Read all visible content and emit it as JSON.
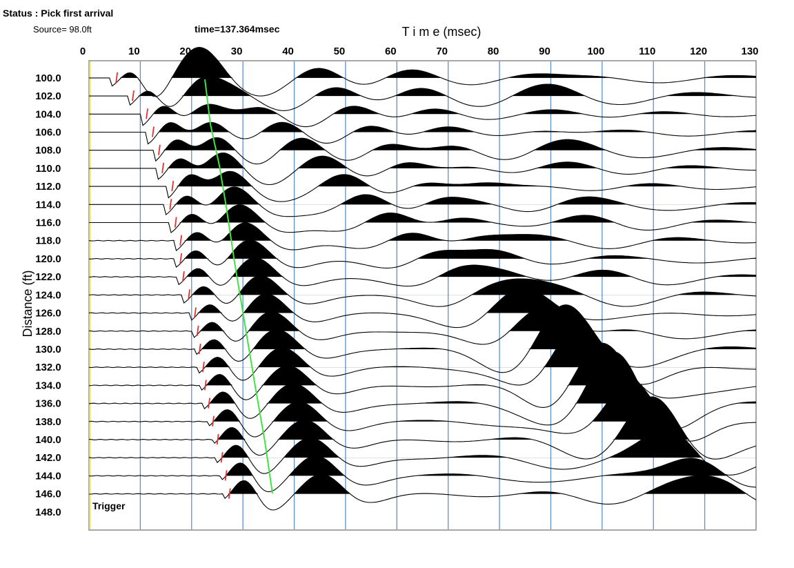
{
  "status": "Status : Pick first arrival",
  "source": "Source= 98.0ft",
  "time_readout": "time=137.364msec",
  "trigger": "Trigger",
  "axis": {
    "x_title": "T i m e (msec)",
    "y_title": "Distance (ft)",
    "xlim": [
      0,
      130
    ],
    "x_ticks": [
      0,
      10,
      20,
      30,
      40,
      50,
      60,
      70,
      80,
      90,
      100,
      110,
      120,
      130
    ],
    "ylim": [
      98.1,
      150
    ],
    "y_ticks": [
      {
        "value": 100,
        "label": "100.0"
      },
      {
        "value": 102,
        "label": "102.0"
      },
      {
        "value": 104,
        "label": "104.0"
      },
      {
        "value": 106,
        "label": "106.0"
      },
      {
        "value": 108,
        "label": "108.0"
      },
      {
        "value": 110,
        "label": "110.0"
      },
      {
        "value": 112,
        "label": "112.0"
      },
      {
        "value": 114,
        "label": "114.0"
      },
      {
        "value": 116,
        "label": "116.0"
      },
      {
        "value": 118,
        "label": "118.0"
      },
      {
        "value": 120,
        "label": "120.0"
      },
      {
        "value": 122,
        "label": "122.0"
      },
      {
        "value": 124,
        "label": "124.0"
      },
      {
        "value": 126,
        "label": "126.0"
      },
      {
        "value": 128,
        "label": "128.0"
      },
      {
        "value": 130,
        "label": "130.0"
      },
      {
        "value": 132,
        "label": "132.0"
      },
      {
        "value": 134,
        "label": "134.0"
      },
      {
        "value": 136,
        "label": "136.0"
      },
      {
        "value": 138,
        "label": "138.0"
      },
      {
        "value": 140,
        "label": "140.0"
      },
      {
        "value": 142,
        "label": "142.0"
      },
      {
        "value": 144,
        "label": "144.0"
      },
      {
        "value": 146,
        "label": "146.0"
      },
      {
        "value": 148,
        "label": "148.0"
      }
    ]
  },
  "first_arrival_picks": [
    5.4,
    8.6,
    11.3,
    12.5,
    13.7,
    14.4,
    16.3,
    15.9,
    16.9,
    17.9,
    17.9,
    18.4,
    19.5,
    20.7,
    21.2,
    21.6,
    22.3,
    22.7,
    23.4,
    24.2,
    25.1,
    25.9,
    26.7,
    27.4
  ]
}
